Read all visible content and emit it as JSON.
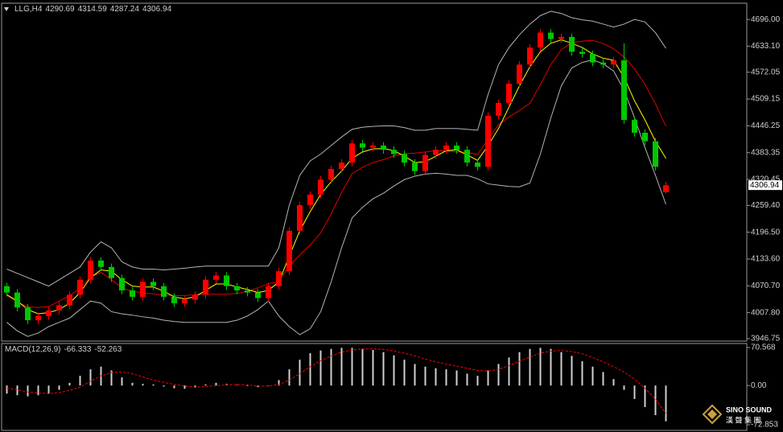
{
  "chart_data": [
    {
      "type": "candlestick",
      "symbol": "LLG,H4",
      "header_values": [
        4290.69,
        4314.59,
        4287.24,
        4306.94
      ],
      "up_color": "#ff0000",
      "down_color": "#00c800",
      "open": [
        4070,
        4055,
        4020,
        3990,
        4000,
        4013,
        4025,
        4050,
        4085,
        4130,
        4115,
        4089,
        4060,
        4045,
        4080,
        4070,
        4045,
        4030,
        4038,
        4050,
        4085,
        4095,
        4070,
        4060,
        4055,
        4042,
        4070,
        4105,
        4200,
        4260,
        4285,
        4320,
        4345,
        4360,
        4405,
        4395,
        4400,
        4390,
        4380,
        4360,
        4340,
        4378,
        4390,
        4400,
        4390,
        4360,
        4350,
        4470,
        4500,
        4545,
        4590,
        4630,
        4665,
        4650,
        4655,
        4620,
        4615,
        4595,
        4590,
        4600,
        4460,
        4430,
        4410,
        4290.69
      ],
      "high": [
        4078,
        4063,
        4028,
        4008,
        4021,
        4033,
        4058,
        4093,
        4138,
        4138,
        4123,
        4097,
        4068,
        4088,
        4088,
        4078,
        4053,
        4046,
        4058,
        4093,
        4103,
        4103,
        4078,
        4068,
        4063,
        4078,
        4113,
        4208,
        4268,
        4293,
        4328,
        4353,
        4368,
        4413,
        4413,
        4408,
        4408,
        4398,
        4388,
        4368,
        4386,
        4398,
        4408,
        4408,
        4398,
        4368,
        4478,
        4508,
        4553,
        4598,
        4638,
        4673,
        4673,
        4663,
        4663,
        4628,
        4623,
        4603,
        4608,
        4640,
        4468,
        4438,
        4418,
        4314.59
      ],
      "low": [
        4046,
        4011,
        3981,
        3981,
        3991,
        4004,
        4016,
        4041,
        4076,
        4106,
        4080,
        4051,
        4036,
        4036,
        4061,
        4036,
        4021,
        4021,
        4029,
        4041,
        4076,
        4061,
        4051,
        4046,
        4033,
        4033,
        4061,
        4096,
        4191,
        4251,
        4276,
        4311,
        4336,
        4351,
        4386,
        4386,
        4381,
        4371,
        4351,
        4331,
        4331,
        4369,
        4381,
        4381,
        4351,
        4341,
        4341,
        4461,
        4491,
        4536,
        4581,
        4621,
        4641,
        4641,
        4611,
        4606,
        4586,
        4581,
        4581,
        4451,
        4421,
        4401,
        4341,
        4287.24
      ],
      "close": [
        4055,
        4020,
        3990,
        4000,
        4013,
        4025,
        4050,
        4085,
        4130,
        4115,
        4089,
        4060,
        4045,
        4080,
        4070,
        4045,
        4030,
        4038,
        4050,
        4085,
        4095,
        4070,
        4060,
        4055,
        4042,
        4070,
        4105,
        4200,
        4260,
        4285,
        4320,
        4345,
        4360,
        4405,
        4395,
        4400,
        4390,
        4380,
        4360,
        4340,
        4378,
        4390,
        4400,
        4390,
        4360,
        4350,
        4470,
        4500,
        4545,
        4590,
        4630,
        4665,
        4650,
        4655,
        4620,
        4615,
        4595,
        4590,
        4600,
        4460,
        4430,
        4410,
        4350,
        4306.94
      ],
      "lines": [
        {
          "color": "#b4b4b4",
          "values": [
            4110,
            4100,
            4090,
            4080,
            4070,
            4085,
            4100,
            4115,
            4150,
            4174,
            4160,
            4127,
            4115,
            4110,
            4110,
            4108,
            4110,
            4112,
            4115,
            4117,
            4117,
            4117,
            4117,
            4117,
            4117,
            4117,
            4160,
            4260,
            4330,
            4364,
            4380,
            4400,
            4420,
            4438,
            4443,
            4445,
            4446,
            4446,
            4442,
            4436,
            4436,
            4440,
            4440,
            4440,
            4438,
            4436,
            4520,
            4590,
            4630,
            4660,
            4685,
            4705,
            4715,
            4710,
            4700,
            4695,
            4692,
            4685,
            4678,
            4685,
            4696,
            4690,
            4665,
            4628
          ]
        },
        {
          "color": "#e00000",
          "values": [
            4048,
            4033,
            4021,
            4020,
            4022,
            4035,
            4048,
            4065,
            4092,
            4102,
            4085,
            4066,
            4058,
            4054,
            4052,
            4049,
            4048,
            4048,
            4050,
            4051,
            4051,
            4051,
            4053,
            4058,
            4066,
            4076,
            4080,
            4118,
            4143,
            4167,
            4195,
            4240,
            4290,
            4334,
            4349,
            4360,
            4367,
            4376,
            4381,
            4382,
            4385,
            4388,
            4387,
            4385,
            4384,
            4379,
            4415,
            4449,
            4467,
            4482,
            4499,
            4543,
            4590,
            4625,
            4641,
            4645,
            4647,
            4639,
            4627,
            4608,
            4580,
            4543,
            4498,
            4445
          ]
        },
        {
          "color": "#b4b4b4",
          "values": [
            3985,
            3965,
            3952,
            3960,
            3975,
            3985,
            3995,
            4015,
            4035,
            4030,
            4010,
            4005,
            4002,
            3998,
            3995,
            3990,
            3987,
            3985,
            3985,
            3985,
            3985,
            3985,
            3990,
            4000,
            4015,
            4035,
            4000,
            3975,
            3956,
            3970,
            4010,
            4080,
            4160,
            4230,
            4255,
            4275,
            4288,
            4305,
            4320,
            4328,
            4333,
            4335,
            4333,
            4330,
            4330,
            4322,
            4310,
            4307,
            4304,
            4303,
            4312,
            4380,
            4465,
            4540,
            4582,
            4595,
            4601,
            4592,
            4575,
            4530,
            4465,
            4395,
            4330,
            4262
          ]
        },
        {
          "color": "#ffff00",
          "values": [
            4050,
            4035,
            4015,
            4005,
            4008,
            4015,
            4030,
            4055,
            4090,
            4108,
            4105,
            4085,
            4070,
            4068,
            4068,
            4058,
            4045,
            4040,
            4045,
            4060,
            4075,
            4075,
            4068,
            4062,
            4055,
            4060,
            4080,
            4140,
            4200,
            4245,
            4285,
            4315,
            4340,
            4370,
            4385,
            4392,
            4393,
            4388,
            4375,
            4360,
            4362,
            4375,
            4388,
            4390,
            4378,
            4365,
            4400,
            4440,
            4490,
            4540,
            4585,
            4620,
            4640,
            4648,
            4640,
            4630,
            4615,
            4605,
            4600,
            4560,
            4505,
            4460,
            4410,
            4370
          ]
        }
      ],
      "current_price": 4306.94,
      "ylim": [
        3941,
        4734
      ],
      "yticks": [
        {
          "value": 4696,
          "label": "4696.00"
        },
        {
          "value": 4633.1,
          "label": "4633.10"
        },
        {
          "value": 4572.05,
          "label": "4572.05"
        },
        {
          "value": 4509.15,
          "label": "4509.15"
        },
        {
          "value": 4446.25,
          "label": "4446.25"
        },
        {
          "value": 4383.35,
          "label": "4383.35"
        },
        {
          "value": 4320.45,
          "label": "4320.45"
        },
        {
          "value": 4259.4,
          "label": "4259.40"
        },
        {
          "value": 4196.5,
          "label": "4196.50"
        },
        {
          "value": 4133.6,
          "label": "4133.60"
        },
        {
          "value": 4070.7,
          "label": "4070.70"
        },
        {
          "value": 4007.8,
          "label": "4007.80"
        },
        {
          "value": 3946.75,
          "label": "3946.75"
        }
      ]
    },
    {
      "type": "macd",
      "title": "MACD(12,26,9)",
      "header_values": [
        -66.333,
        -52.263
      ],
      "hist_color": "#d0d0d0",
      "signal_color": "#ff0000",
      "values": [
        -15,
        -18,
        -20,
        -18,
        -15,
        -8,
        5,
        18,
        30,
        35,
        28,
        15,
        5,
        3,
        2,
        -2,
        -5,
        -6,
        -4,
        2,
        5,
        3,
        1,
        -1,
        -3,
        0,
        10,
        30,
        48,
        60,
        65,
        68,
        70,
        70,
        68,
        66,
        62,
        56,
        48,
        40,
        35,
        32,
        30,
        28,
        22,
        18,
        28,
        40,
        52,
        62,
        68,
        70,
        68,
        62,
        55,
        45,
        35,
        25,
        12,
        -8,
        -25,
        -40,
        -55,
        -66.333
      ],
      "signal": [
        -5,
        -8,
        -12,
        -14,
        -15,
        -13,
        -9,
        -3,
        8,
        18,
        24,
        25,
        22,
        16,
        10,
        6,
        2,
        -1,
        -3,
        -2,
        0,
        1,
        2,
        1,
        -1,
        -1,
        2,
        10,
        22,
        35,
        46,
        55,
        62,
        66,
        68,
        68,
        67,
        64,
        60,
        55,
        49,
        44,
        40,
        36,
        32,
        28,
        27,
        30,
        37,
        45,
        53,
        60,
        64,
        65,
        63,
        59,
        52,
        44,
        35,
        25,
        12,
        -5,
        -25,
        -52.263
      ],
      "ylim": [
        -83.3,
        78
      ],
      "yticks": [
        70.568,
        {
          "value": 0,
          "label": "0.00"
        },
        -72.853
      ]
    }
  ],
  "logo": {
    "name": "SINO SOUND",
    "subtitle": "漢 聲 集 團"
  }
}
